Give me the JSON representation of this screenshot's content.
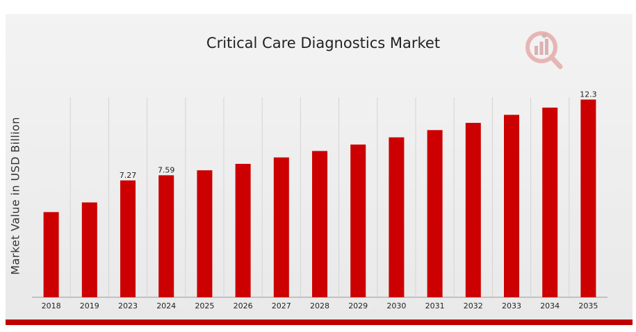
{
  "chart_data": {
    "type": "bar",
    "title": "Critical Care Diagnostics Market",
    "xlabel": "",
    "ylabel": "Market Value in USD Billion",
    "categories": [
      "2018",
      "2019",
      "2023",
      "2024",
      "2025",
      "2026",
      "2027",
      "2028",
      "2029",
      "2030",
      "2031",
      "2032",
      "2033",
      "2034",
      "2035"
    ],
    "values": [
      5.3,
      5.9,
      7.27,
      7.59,
      7.9,
      8.3,
      8.7,
      9.1,
      9.5,
      9.95,
      10.4,
      10.85,
      11.35,
      11.8,
      12.3
    ],
    "data_labels": {
      "2": "7.27",
      "3": "7.59",
      "14": "12.3"
    },
    "ylim": [
      0,
      14
    ],
    "grid": "vertical",
    "legend": "none",
    "colors": {
      "bar": "#cc0000",
      "grid": "#d4d4d4",
      "baseline": "#999999"
    }
  },
  "logo": {
    "icon": "market-research-logo-icon"
  }
}
